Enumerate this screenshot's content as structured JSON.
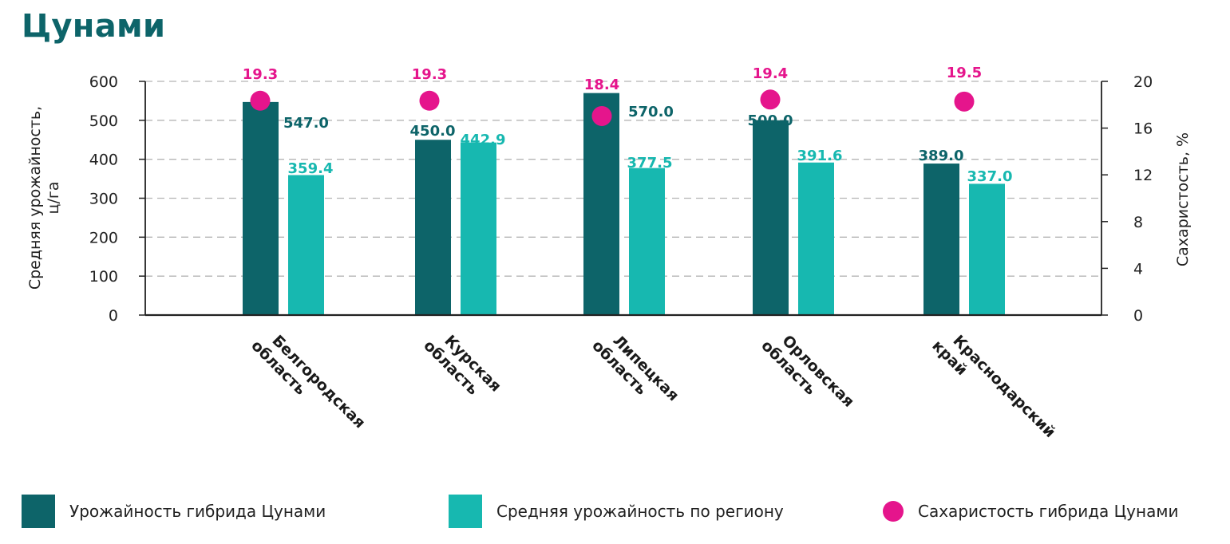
{
  "title": "Цунами",
  "colors": {
    "title": "#0d6469",
    "hybrid": "#0d6469",
    "region": "#17b8b0",
    "sugar": "#e5158c",
    "grid": "#b5b5b5",
    "axis": "#222222"
  },
  "chart_data": {
    "type": "bar",
    "categories": [
      "Белгородская область",
      "Курская область",
      "Липецкая область",
      "Орловская область",
      "Краснодарский край"
    ],
    "category_lines": [
      [
        "Белгородская",
        "область"
      ],
      [
        "Курская",
        "область"
      ],
      [
        "Липецкая",
        "область"
      ],
      [
        "Орловская",
        "область"
      ],
      [
        "Краснодарский",
        "край"
      ]
    ],
    "series": [
      {
        "name": "Урожайность гибрида Цунами",
        "type": "bar",
        "axis": "left",
        "color": "#0d6469",
        "values": [
          547.0,
          450.0,
          570.0,
          500.0,
          389.0
        ],
        "labels": [
          "547.0",
          "450.0",
          "570.0",
          "500.0",
          "389.0"
        ]
      },
      {
        "name": "Средняя урожайность по региону",
        "type": "bar",
        "axis": "left",
        "color": "#17b8b0",
        "values": [
          359.4,
          442.9,
          377.5,
          391.6,
          337.0
        ],
        "labels": [
          "359.4",
          "442.9",
          "377.5",
          "391.6",
          "337.0"
        ]
      },
      {
        "name": "Сахаристость гибрида Цунами",
        "type": "scatter",
        "axis": "right",
        "color": "#e5158c",
        "values": [
          19.3,
          19.3,
          18.4,
          19.4,
          19.5
        ],
        "labels": [
          "19.3",
          "19.3",
          "18.4",
          "19.4",
          "19.5"
        ]
      }
    ],
    "ylabel_lines": [
      "Средняя урожайность,",
      "ц/га"
    ],
    "y2label": "Сахаристость, %",
    "ylim": [
      0,
      600
    ],
    "yticks": [
      "0",
      "100",
      "200",
      "300",
      "400",
      "500",
      "600"
    ],
    "y2lim": [
      0,
      20
    ],
    "y2ticks": [
      "0",
      "4",
      "8",
      "12",
      "16",
      "20"
    ],
    "grid": true,
    "legend_position": "bottom"
  },
  "legend": [
    {
      "label": "Урожайность гибрида Цунами",
      "marker": "square"
    },
    {
      "label": "Средняя урожайность по региону",
      "marker": "square"
    },
    {
      "label": "Сахаристость гибрида Цунами",
      "marker": "circle"
    }
  ]
}
